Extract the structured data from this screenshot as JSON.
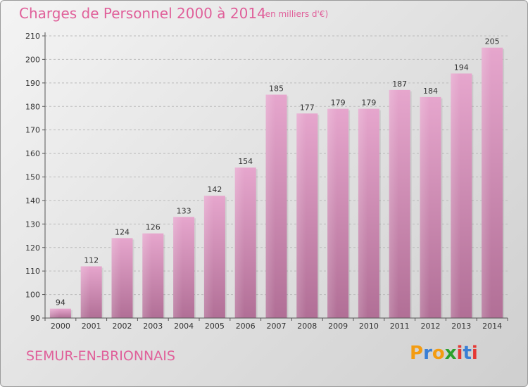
{
  "header": {
    "title": "Charges de Personnel 2000 à 2014",
    "subtitle": "(en milliers d'€)"
  },
  "footer": {
    "commune": "SEMUR-EN-BRIONNAIS",
    "logo": "Proxiti",
    "logo_colors": [
      "#f39c12",
      "#3a7fd5",
      "#f39c12",
      "#2ca02c",
      "#e53935",
      "#3a7fd5",
      "#e53935"
    ]
  },
  "colors": {
    "accent": "#e0609a",
    "bar_top": "#e6a6cd",
    "bar_bottom": "#b16f96",
    "grid": "#bbbbbb"
  },
  "chart_data": {
    "type": "bar",
    "title": "Charges de Personnel 2000 à 2014",
    "subtitle": "(en milliers d'€)",
    "categories": [
      "2000",
      "2001",
      "2002",
      "2003",
      "2004",
      "2005",
      "2006",
      "2007",
      "2008",
      "2009",
      "2010",
      "2011",
      "2012",
      "2013",
      "2014"
    ],
    "values": [
      94,
      112,
      124,
      126,
      133,
      142,
      154,
      185,
      177,
      179,
      179,
      187,
      184,
      194,
      205
    ],
    "ylim": [
      90,
      210
    ],
    "yticks": [
      90,
      100,
      110,
      120,
      130,
      140,
      150,
      160,
      170,
      180,
      190,
      200,
      210
    ],
    "grid": "horizontal dashed",
    "xlabel": "",
    "ylabel": ""
  }
}
